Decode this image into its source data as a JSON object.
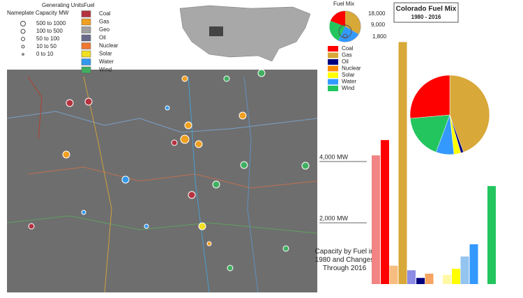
{
  "map_legend": {
    "size_title": "Generating Units",
    "size_subtitle": "Nameplate Capacity MW",
    "sizes": [
      "500 to 1000",
      "100 to 500",
      "50 to 100",
      "10 to 50",
      "0 to 10"
    ],
    "fuel_title": "Fuel",
    "fuels": [
      {
        "label": "Coal",
        "color": "#b5323f"
      },
      {
        "label": "Gas",
        "color": "#f0a020"
      },
      {
        "label": "Geo",
        "color": "#a0a0a0"
      },
      {
        "label": "Oil",
        "color": "#6a6a8a"
      },
      {
        "label": "Nuclear",
        "color": "#f07830"
      },
      {
        "label": "Solar",
        "color": "#f0e020"
      },
      {
        "label": "Water",
        "color": "#3399ee"
      },
      {
        "label": "Wind",
        "color": "#40b060"
      }
    ]
  },
  "fuel_mix_legend": {
    "title": "Fuel Mix",
    "sizes": [
      "18,000",
      "9,000",
      "1,800"
    ]
  },
  "chart_data": {
    "type": "bar",
    "title": "Colorado Fuel Mix",
    "subtitle": "1980 - 2016",
    "annotation": "Capacity by Fuel in 1980 and Changes Through 2016",
    "categories": [
      "Coal",
      "Gas",
      "Oil",
      "Nuclear",
      "Solar",
      "Water",
      "Wind"
    ],
    "series": [
      {
        "colors": [
          "#f28484",
          "#f7bd80",
          "#8c8ce6",
          "#f5a462",
          "#fff9a6",
          "#94c4f0",
          "#6cc58a"
        ],
        "values": [
          4200,
          600,
          450,
          340,
          300,
          900,
          0
        ]
      },
      {
        "colors": [
          "#ff0000",
          "#d8a838",
          "#000080",
          "#ff8c00",
          "#ffff00",
          "#3399ff",
          "#22c55e"
        ],
        "values": [
          4700,
          7900,
          200,
          0,
          500,
          1300,
          3200
        ]
      }
    ],
    "ylim": [
      0,
      8000
    ],
    "yticks": [
      {
        "value": 2000,
        "label": "2,000 MW"
      },
      {
        "value": 4000,
        "label": "4,000 MW"
      }
    ]
  }
}
